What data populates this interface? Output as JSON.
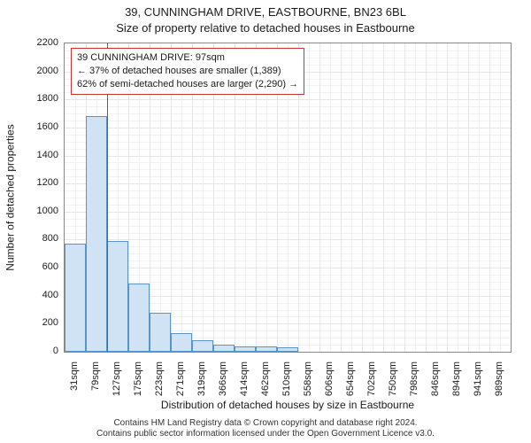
{
  "title_main": "39, CUNNINGHAM DRIVE, EASTBOURNE, BN23 6BL",
  "title_sub": "Size of property relative to detached houses in Eastbourne",
  "chart": {
    "type": "histogram",
    "ylabel": "Number of detached properties",
    "xlabel": "Distribution of detached houses by size in Eastbourne",
    "ylim": [
      0,
      2200
    ],
    "ytick_step": 200,
    "yminor_count": 4,
    "plot_border_color": "#888888",
    "grid_color": "#e6e6e6",
    "grid_minor_color": "#f2f2f2",
    "bar_fill": "#cfe3f5",
    "bar_stroke": "#5a93c8",
    "marker_color": "#cc3333",
    "background_color": "#ffffff",
    "label_fontsize": 12,
    "tick_fontsize": 11,
    "title_fontsize": 13,
    "x_categories": [
      "31sqm",
      "79sqm",
      "127sqm",
      "175sqm",
      "223sqm",
      "271sqm",
      "319sqm",
      "366sqm",
      "414sqm",
      "462sqm",
      "510sqm",
      "558sqm",
      "606sqm",
      "654sqm",
      "702sqm",
      "750sqm",
      "798sqm",
      "846sqm",
      "894sqm",
      "941sqm",
      "989sqm"
    ],
    "values": [
      770,
      1680,
      790,
      490,
      280,
      130,
      80,
      50,
      40,
      35,
      30,
      0,
      0,
      0,
      0,
      0,
      0,
      0,
      0,
      0,
      0
    ],
    "marker_between_index": 1,
    "bar_width_ratio": 1.0
  },
  "callout": {
    "border_color": "#cc3333",
    "line1": "39 CUNNINGHAM DRIVE: 97sqm",
    "line2": "← 37% of detached houses are smaller (1,389)",
    "line3": "62% of semi-detached houses are larger (2,290) →"
  },
  "footer": {
    "line1": "Contains HM Land Registry data © Crown copyright and database right 2024.",
    "line2": "Contains public sector information licensed under the Open Government Licence v3.0."
  }
}
